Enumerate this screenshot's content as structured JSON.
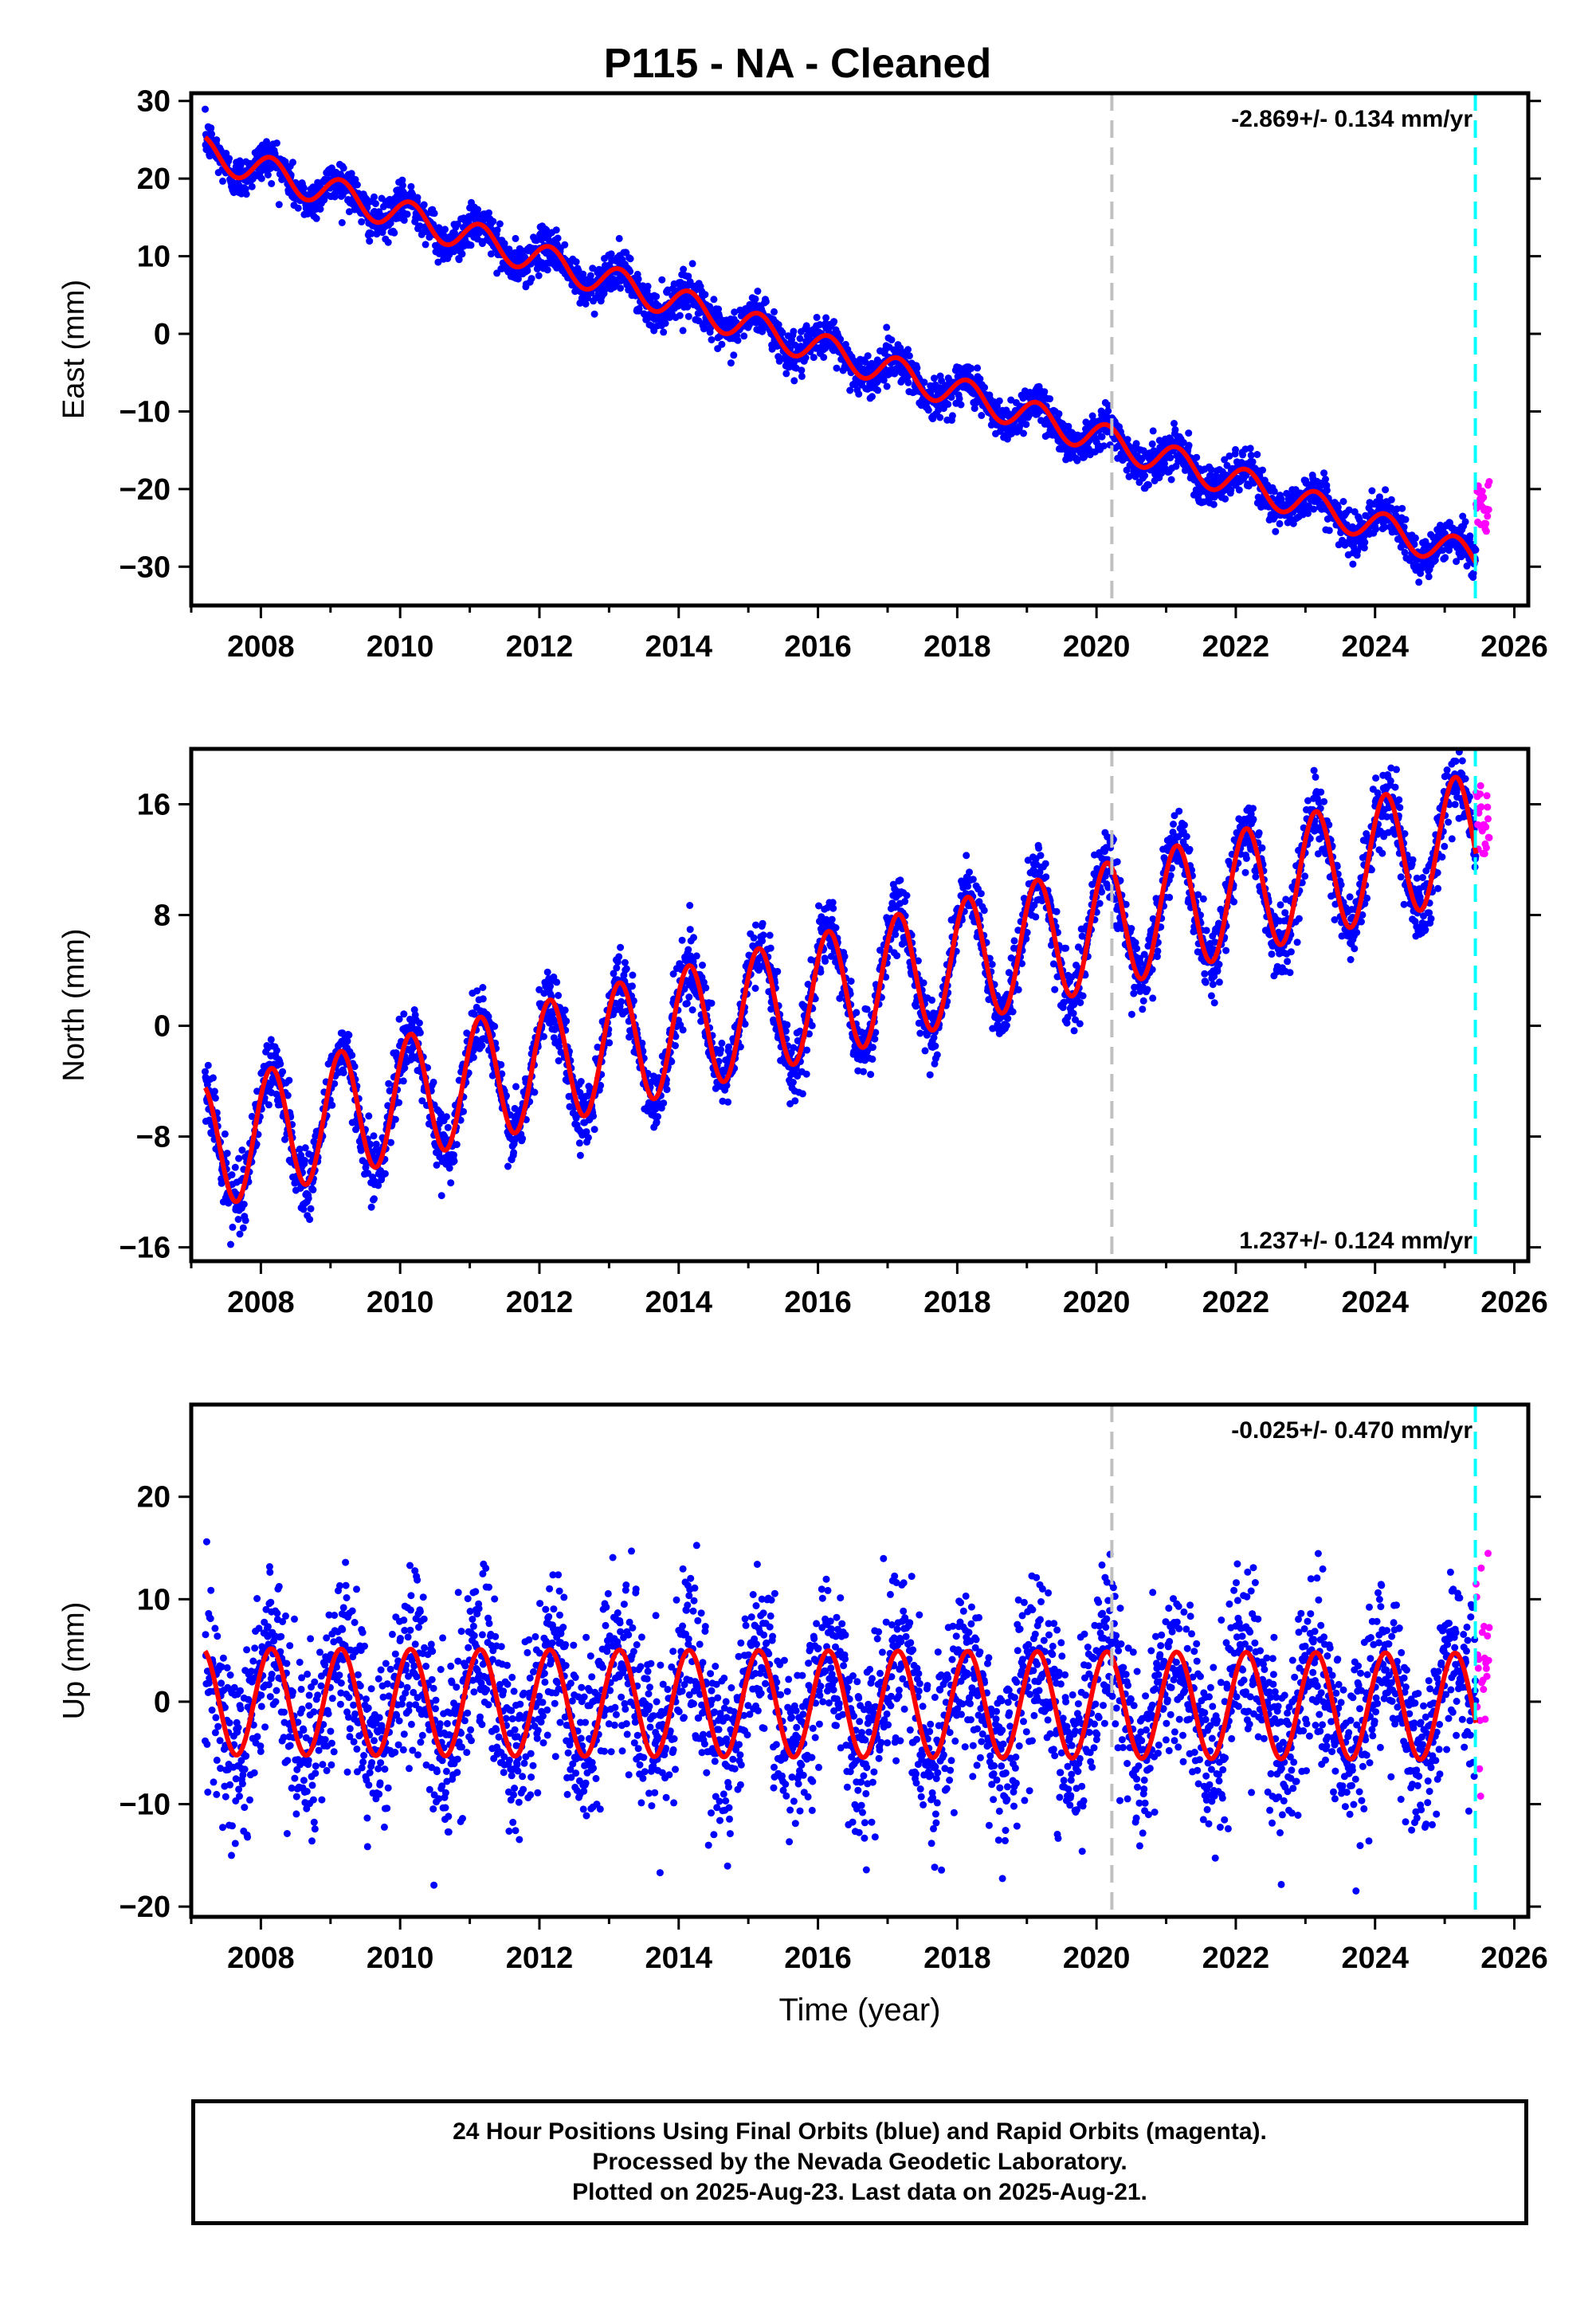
{
  "title": "P115  - NA - Cleaned",
  "colors": {
    "final_orbits": "#0000ff",
    "rapid_orbits": "#ff00ff",
    "model": "#ff0000",
    "event_line": "#c0c0c0",
    "data_end_line": "#00ffff"
  },
  "chart_data": [
    {
      "type": "scatter",
      "panel": "east",
      "ylabel": "East (mm)",
      "xlabel": "",
      "xlim": [
        2007.0,
        2026.2
      ],
      "ylim": [
        -35,
        31
      ],
      "xticks": [
        2008,
        2010,
        2012,
        2014,
        2016,
        2018,
        2020,
        2022,
        2024,
        2026
      ],
      "xtick_labels": [
        "2008",
        "2010",
        "2012",
        "2014",
        "2016",
        "2018",
        "2020",
        "2022",
        "2024",
        "2026"
      ],
      "yticks": [
        -30,
        -20,
        -10,
        0,
        10,
        20,
        30
      ],
      "ytick_labels": [
        "−30",
        "−20",
        "−10",
        "0",
        "10",
        "20",
        "30"
      ],
      "rate_label": "-2.869+/- 0.134 mm/yr",
      "rate_position": "top-right",
      "series": [
        {
          "values_start": 2007.2,
          "values_end": 2025.45,
          "intercept_2007": 24.0,
          "rate": -2.869,
          "seasonal_amp": 2.0,
          "scatter_sd": 1.3
        },
        {
          "values_start": 2025.45,
          "values_end": 2025.64,
          "level": -22.5,
          "scatter_sd": 1.8
        }
      ],
      "vlines": [
        2020.22,
        2025.44
      ]
    },
    {
      "type": "scatter",
      "panel": "north",
      "ylabel": "North (mm)",
      "xlabel": "",
      "xlim": [
        2007.0,
        2026.2
      ],
      "ylim": [
        -17,
        20
      ],
      "xticks": [
        2008,
        2010,
        2012,
        2014,
        2016,
        2018,
        2020,
        2022,
        2024,
        2026
      ],
      "xtick_labels": [
        "2008",
        "2010",
        "2012",
        "2014",
        "2016",
        "2018",
        "2020",
        "2022",
        "2024",
        "2026"
      ],
      "yticks": [
        -16,
        -8,
        0,
        8,
        16
      ],
      "ytick_labels": [
        "−16",
        "−8",
        "0",
        "8",
        "16"
      ],
      "rate_label": "1.237+/- 0.124 mm/yr",
      "rate_position": "bottom-right",
      "series": [
        {
          "values_start": 2007.2,
          "values_end": 2025.45,
          "intercept_2007": -9.0,
          "rate": 1.237,
          "seasonal_amp": 4.5,
          "scatter_sd": 1.2
        },
        {
          "values_start": 2025.45,
          "values_end": 2025.64,
          "level": 14.5,
          "scatter_sd": 1.6
        }
      ],
      "vlines": [
        2020.22,
        2025.44
      ]
    },
    {
      "type": "scatter",
      "panel": "up",
      "ylabel": "Up (mm)",
      "xlabel": "Time (year)",
      "xlim": [
        2007.0,
        2026.2
      ],
      "ylim": [
        -21,
        29
      ],
      "xticks": [
        2008,
        2010,
        2012,
        2014,
        2016,
        2018,
        2020,
        2022,
        2024,
        2026
      ],
      "xtick_labels": [
        "2008",
        "2010",
        "2012",
        "2014",
        "2016",
        "2018",
        "2020",
        "2022",
        "2024",
        "2026"
      ],
      "yticks": [
        -20,
        -10,
        0,
        10,
        20
      ],
      "ytick_labels": [
        "−20",
        "−10",
        "0",
        "10",
        "20"
      ],
      "rate_label": "-0.025+/- 0.470 mm/yr",
      "rate_position": "top-right",
      "series": [
        {
          "values_start": 2007.2,
          "values_end": 2025.45,
          "intercept_2007": 0.0,
          "rate": -0.025,
          "seasonal_amp": 5.2,
          "scatter_sd": 4.2
        },
        {
          "values_start": 2025.45,
          "values_end": 2025.64,
          "level": 4.0,
          "scatter_sd": 7.0
        }
      ],
      "vlines": [
        2020.22,
        2025.44
      ]
    }
  ],
  "footer": {
    "line1": "24 Hour Positions Using Final Orbits (blue) and Rapid Orbits (magenta).",
    "line2": "Processed by the Nevada Geodetic Laboratory.",
    "line3": "Plotted on 2025-Aug-23. Last data on 2025-Aug-21."
  }
}
